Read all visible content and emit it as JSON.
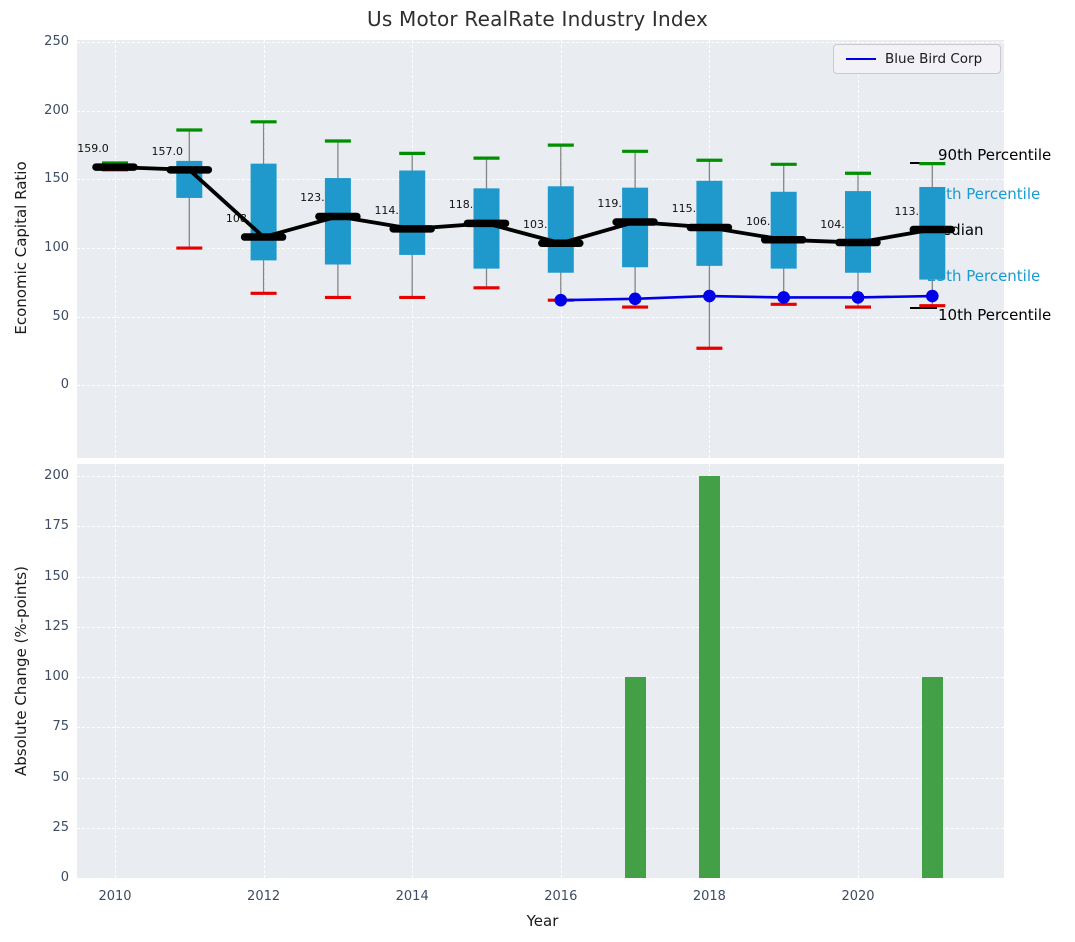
{
  "title": "Us Motor RealRate Industry Index",
  "legend": {
    "label": "Blue Bird Corp"
  },
  "annotations": [
    {
      "id": "p90",
      "label": "90th Percentile",
      "color": "black"
    },
    {
      "id": "p75",
      "label": "75th Percentile",
      "color": "blue"
    },
    {
      "id": "median",
      "label": "Median",
      "color": "black"
    },
    {
      "id": "p25",
      "label": "25th Percentile",
      "color": "blue"
    },
    {
      "id": "p10",
      "label": "10th Percentile",
      "color": "black"
    }
  ],
  "colors": {
    "axes_background": "#e9edf1",
    "gridline": "#ffffff",
    "tick_label": "#3d4c63",
    "box_fill": "#1f99cc",
    "whisker": "#858585",
    "p90_cap": "#008f00",
    "p10_cap": "#e60000",
    "median": "#000000",
    "company_line": "#0000e8",
    "bar_fill": "#43a047",
    "blue_annotation": "#189ad2"
  },
  "chart_data": [
    {
      "type": "boxplot",
      "title": "Us Motor RealRate Industry Index",
      "ylabel": "Economic Capital Ratio",
      "ylim": [
        -53,
        251.6
      ],
      "yticks": [
        0,
        50,
        100,
        150,
        200,
        250
      ],
      "xticks": [
        2010,
        2012,
        2014,
        2016,
        2018,
        2020
      ],
      "grid": "dashed",
      "legend_position": "upper right",
      "years": [
        2010,
        2011,
        2012,
        2013,
        2014,
        2015,
        2016,
        2017,
        2018,
        2019,
        2020,
        2021
      ],
      "p90": [
        162,
        186,
        192,
        178,
        169,
        165.5,
        175,
        170.5,
        164,
        161,
        154.5,
        161.5
      ],
      "p75": [
        160,
        163.5,
        161.5,
        151,
        156.5,
        143.5,
        145,
        144,
        149,
        141,
        141.5,
        144.5
      ],
      "median": [
        159,
        157,
        108,
        123,
        114,
        118,
        103.5,
        119,
        115,
        106,
        104,
        113.5
      ],
      "p25": [
        157.5,
        136.5,
        91,
        88,
        95,
        85,
        82,
        86,
        87,
        85,
        82,
        77
      ],
      "p10": [
        157,
        100,
        67,
        64,
        64,
        71,
        62,
        57,
        27,
        59,
        57,
        58
      ],
      "median_labels": [
        "159.0",
        "157.0",
        "108.0",
        "123.0",
        "114.0",
        "118.0",
        "103.5",
        "119.0",
        "115.0",
        "106.0",
        "104.0",
        "113.5"
      ],
      "company_series": {
        "name": "Blue Bird Corp",
        "years": [
          2016,
          2017,
          2018,
          2019,
          2020,
          2021
        ],
        "values": [
          62,
          63,
          65,
          64,
          64,
          65
        ]
      }
    },
    {
      "type": "bar",
      "ylabel": "Absolute Change (%-points)",
      "xlabel": "Year",
      "ylim": [
        0,
        206
      ],
      "yticks": [
        0,
        25,
        50,
        75,
        100,
        125,
        150,
        175,
        200
      ],
      "xticks": [
        2010,
        2012,
        2014,
        2016,
        2018,
        2020
      ],
      "grid": "dashed",
      "years": [
        2010,
        2011,
        2012,
        2013,
        2014,
        2015,
        2016,
        2017,
        2018,
        2019,
        2020,
        2021
      ],
      "values": [
        0,
        0,
        0,
        0,
        0,
        0,
        0,
        100,
        200,
        0,
        0,
        100
      ]
    }
  ]
}
